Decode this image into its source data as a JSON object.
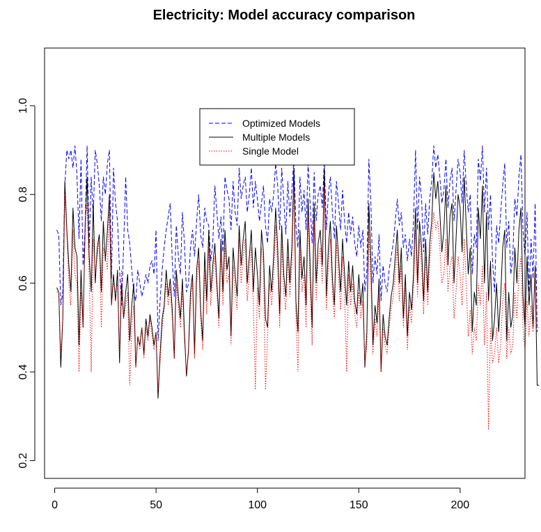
{
  "chart_data": {
    "type": "line",
    "title": "Electricity: Model accuracy comparison",
    "xlabel": "",
    "ylabel": "",
    "xlim": [
      -5,
      232
    ],
    "ylim": [
      0.16,
      1.13
    ],
    "x_ticks": [
      0,
      50,
      100,
      150,
      200
    ],
    "y_ticks": [
      0.2,
      0.4,
      0.6,
      0.8,
      1.0
    ],
    "x_tick_labels": [
      "0",
      "50",
      "100",
      "150",
      "200"
    ],
    "y_tick_labels": [
      "0.2",
      "0.4",
      "0.6",
      "0.8",
      "1.0"
    ],
    "grid": false,
    "legend_position": "top-center",
    "x_start": 1,
    "series": [
      {
        "name": "Optimized Models",
        "color": "#0000ff",
        "dash": "dashed",
        "values": [
          0.72,
          0.71,
          0.55,
          0.58,
          0.82,
          0.9,
          0.88,
          0.9,
          0.86,
          0.91,
          0.84,
          0.7,
          0.88,
          0.64,
          0.72,
          0.91,
          0.68,
          0.84,
          0.75,
          0.9,
          0.87,
          0.82,
          0.74,
          0.84,
          0.8,
          0.87,
          0.9,
          0.61,
          0.86,
          0.78,
          0.74,
          0.63,
          0.55,
          0.68,
          0.84,
          0.72,
          0.69,
          0.63,
          0.58,
          0.56,
          0.63,
          0.6,
          0.57,
          0.59,
          0.62,
          0.6,
          0.64,
          0.65,
          0.62,
          0.72,
          0.47,
          0.56,
          0.63,
          0.68,
          0.72,
          0.75,
          0.78,
          0.65,
          0.57,
          0.73,
          0.66,
          0.62,
          0.76,
          0.69,
          0.58,
          0.6,
          0.68,
          0.72,
          0.66,
          0.74,
          0.8,
          0.71,
          0.68,
          0.77,
          0.74,
          0.73,
          0.65,
          0.69,
          0.82,
          0.76,
          0.7,
          0.75,
          0.67,
          0.84,
          0.81,
          0.79,
          0.72,
          0.83,
          0.76,
          0.73,
          0.86,
          0.79,
          0.82,
          0.84,
          0.76,
          0.8,
          0.86,
          0.77,
          0.83,
          0.79,
          0.74,
          0.78,
          0.82,
          0.73,
          0.69,
          0.79,
          0.76,
          0.8,
          0.87,
          0.82,
          0.72,
          0.86,
          0.79,
          0.71,
          0.83,
          0.75,
          0.81,
          0.88,
          0.73,
          0.68,
          0.84,
          0.76,
          0.81,
          0.72,
          0.87,
          0.78,
          0.69,
          0.85,
          0.74,
          0.8,
          0.82,
          0.77,
          0.88,
          0.72,
          0.8,
          0.84,
          0.76,
          0.7,
          0.83,
          0.78,
          0.72,
          0.81,
          0.74,
          0.69,
          0.76,
          0.71,
          0.75,
          0.69,
          0.66,
          0.73,
          0.68,
          0.72,
          0.58,
          0.63,
          0.88,
          0.78,
          0.6,
          0.66,
          0.62,
          0.71,
          0.56,
          0.64,
          0.6,
          0.58,
          0.63,
          0.66,
          0.69,
          0.74,
          0.79,
          0.73,
          0.76,
          0.68,
          0.71,
          0.65,
          0.7,
          0.66,
          0.74,
          0.9,
          0.72,
          0.84,
          0.79,
          0.67,
          0.78,
          0.71,
          0.79,
          0.83,
          0.91,
          0.86,
          0.89,
          0.84,
          0.78,
          0.81,
          0.88,
          0.77,
          0.83,
          0.86,
          0.74,
          0.81,
          0.88,
          0.85,
          0.78,
          0.9,
          0.82,
          0.76,
          0.8,
          0.62,
          0.71,
          0.68,
          0.88,
          0.83,
          0.91,
          0.76,
          0.86,
          0.72,
          0.8,
          0.65,
          0.58,
          0.73,
          0.69,
          0.76,
          0.82,
          0.87,
          0.68,
          0.74,
          0.62,
          0.66,
          0.79,
          0.75,
          0.84,
          0.89,
          0.72,
          0.66,
          0.76,
          0.58,
          0.7,
          0.61,
          0.78,
          0.49
        ]
      },
      {
        "name": "Multiple Models",
        "color": "#000000",
        "dash": "solid",
        "values": [
          0.59,
          0.58,
          0.41,
          0.52,
          0.83,
          0.72,
          0.64,
          0.58,
          0.77,
          0.68,
          0.66,
          0.46,
          0.63,
          0.5,
          0.72,
          0.84,
          0.66,
          0.58,
          0.78,
          0.6,
          0.68,
          0.71,
          0.58,
          0.74,
          0.65,
          0.72,
          0.8,
          0.55,
          0.62,
          0.56,
          0.63,
          0.42,
          0.6,
          0.52,
          0.58,
          0.62,
          0.47,
          0.55,
          0.6,
          0.41,
          0.48,
          0.46,
          0.5,
          0.44,
          0.52,
          0.48,
          0.53,
          0.5,
          0.46,
          0.49,
          0.34,
          0.44,
          0.52,
          0.55,
          0.63,
          0.57,
          0.61,
          0.54,
          0.43,
          0.63,
          0.57,
          0.52,
          0.61,
          0.49,
          0.39,
          0.45,
          0.58,
          0.62,
          0.44,
          0.63,
          0.68,
          0.54,
          0.47,
          0.67,
          0.56,
          0.72,
          0.58,
          0.64,
          0.69,
          0.6,
          0.52,
          0.7,
          0.58,
          0.72,
          0.63,
          0.66,
          0.48,
          0.68,
          0.62,
          0.57,
          0.73,
          0.64,
          0.7,
          0.74,
          0.6,
          0.66,
          0.72,
          0.58,
          0.68,
          0.62,
          0.55,
          0.72,
          0.67,
          0.52,
          0.5,
          0.64,
          0.58,
          0.66,
          0.77,
          0.68,
          0.53,
          0.73,
          0.62,
          0.57,
          0.7,
          0.6,
          0.68,
          0.86,
          0.56,
          0.49,
          0.72,
          0.61,
          0.66,
          0.55,
          0.79,
          0.64,
          0.5,
          0.78,
          0.6,
          0.69,
          0.72,
          0.64,
          0.86,
          0.57,
          0.68,
          0.74,
          0.61,
          0.55,
          0.73,
          0.66,
          0.58,
          0.7,
          0.62,
          0.55,
          0.65,
          0.58,
          0.64,
          0.56,
          0.53,
          0.62,
          0.55,
          0.6,
          0.41,
          0.49,
          0.78,
          0.65,
          0.46,
          0.55,
          0.51,
          0.61,
          0.4,
          0.53,
          0.48,
          0.46,
          0.52,
          0.57,
          0.6,
          0.66,
          0.72,
          0.6,
          0.68,
          0.52,
          0.62,
          0.48,
          0.58,
          0.54,
          0.62,
          0.77,
          0.6,
          0.74,
          0.68,
          0.56,
          0.7,
          0.58,
          0.69,
          0.74,
          0.85,
          0.79,
          0.83,
          0.76,
          0.67,
          0.72,
          0.82,
          0.64,
          0.75,
          0.78,
          0.6,
          0.7,
          0.8,
          0.77,
          0.67,
          0.84,
          0.73,
          0.62,
          0.68,
          0.49,
          0.58,
          0.55,
          0.77,
          0.7,
          0.82,
          0.6,
          0.76,
          0.56,
          0.65,
          0.47,
          0.52,
          0.6,
          0.49,
          0.57,
          0.68,
          0.72,
          0.47,
          0.58,
          0.5,
          0.53,
          0.68,
          0.6,
          0.72,
          0.77,
          0.57,
          0.5,
          0.66,
          0.55,
          0.62,
          0.5,
          0.64,
          0.37,
          0.37
        ]
      },
      {
        "name": "Single Model",
        "color": "#ff0000",
        "dash": "dotted",
        "values": [
          0.58,
          0.58,
          0.44,
          0.52,
          0.8,
          0.71,
          0.6,
          0.55,
          0.72,
          0.62,
          0.6,
          0.4,
          0.58,
          0.5,
          0.74,
          0.78,
          0.62,
          0.4,
          0.7,
          0.62,
          0.66,
          0.7,
          0.5,
          0.68,
          0.66,
          0.63,
          0.79,
          0.55,
          0.6,
          0.58,
          0.6,
          0.44,
          0.63,
          0.52,
          0.55,
          0.58,
          0.37,
          0.5,
          0.55,
          0.41,
          0.48,
          0.45,
          0.5,
          0.43,
          0.5,
          0.47,
          0.52,
          0.48,
          0.45,
          0.49,
          0.36,
          0.42,
          0.5,
          0.54,
          0.6,
          0.55,
          0.59,
          0.52,
          0.43,
          0.6,
          0.55,
          0.5,
          0.58,
          0.47,
          0.4,
          0.44,
          0.55,
          0.6,
          0.43,
          0.6,
          0.65,
          0.52,
          0.45,
          0.63,
          0.53,
          0.68,
          0.55,
          0.61,
          0.66,
          0.58,
          0.5,
          0.67,
          0.55,
          0.68,
          0.6,
          0.62,
          0.46,
          0.64,
          0.58,
          0.54,
          0.7,
          0.6,
          0.66,
          0.7,
          0.56,
          0.62,
          0.68,
          0.55,
          0.36,
          0.59,
          0.52,
          0.68,
          0.64,
          0.36,
          0.48,
          0.6,
          0.55,
          0.62,
          0.73,
          0.64,
          0.5,
          0.7,
          0.58,
          0.54,
          0.66,
          0.57,
          0.64,
          0.82,
          0.53,
          0.4,
          0.68,
          0.58,
          0.62,
          0.5,
          0.75,
          0.6,
          0.46,
          0.74,
          0.56,
          0.65,
          0.68,
          0.6,
          0.82,
          0.54,
          0.64,
          0.7,
          0.58,
          0.52,
          0.69,
          0.62,
          0.54,
          0.66,
          0.58,
          0.4,
          0.62,
          0.55,
          0.6,
          0.53,
          0.5,
          0.58,
          0.52,
          0.56,
          0.42,
          0.46,
          0.72,
          0.6,
          0.44,
          0.52,
          0.48,
          0.58,
          0.4,
          0.5,
          0.46,
          0.44,
          0.5,
          0.54,
          0.57,
          0.62,
          0.68,
          0.56,
          0.64,
          0.5,
          0.59,
          0.45,
          0.55,
          0.51,
          0.59,
          0.72,
          0.57,
          0.7,
          0.64,
          0.53,
          0.66,
          0.55,
          0.65,
          0.7,
          0.76,
          0.72,
          0.74,
          0.68,
          0.6,
          0.62,
          0.7,
          0.58,
          0.64,
          0.66,
          0.52,
          0.58,
          0.66,
          0.62,
          0.55,
          0.7,
          0.6,
          0.48,
          0.54,
          0.44,
          0.5,
          0.47,
          0.6,
          0.55,
          0.64,
          0.46,
          0.58,
          0.27,
          0.5,
          0.42,
          0.44,
          0.5,
          0.42,
          0.46,
          0.56,
          0.6,
          0.43,
          0.5,
          0.44,
          0.46,
          0.58,
          0.52,
          0.62,
          0.66,
          0.5,
          0.45,
          0.56,
          0.48,
          0.55,
          0.49,
          0.62,
          0.5,
          0.5
        ]
      }
    ]
  }
}
